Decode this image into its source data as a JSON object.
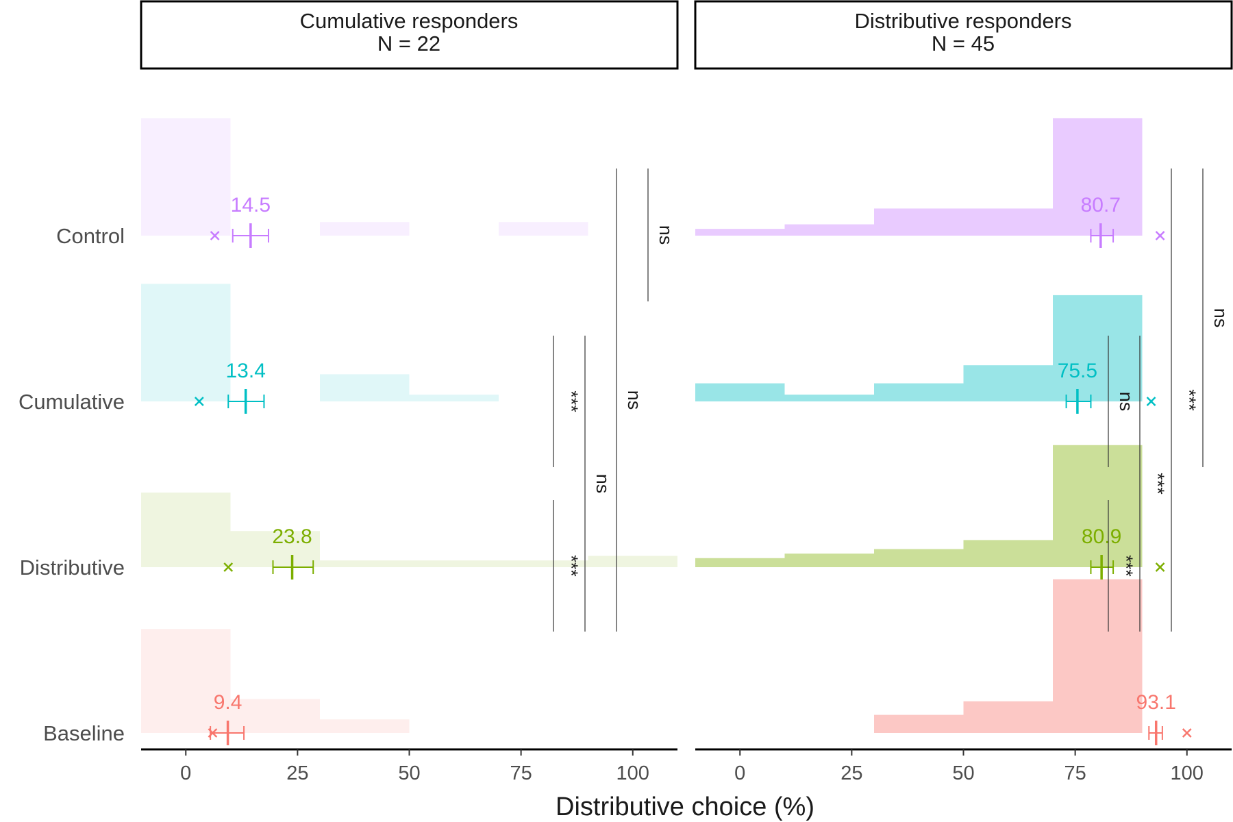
{
  "chart_data": {
    "type": "bar",
    "xlabel": "Distributive choice (%)",
    "ylabel": "",
    "xlim": [
      -10,
      110
    ],
    "x_ticks": [
      "0",
      "25",
      "50",
      "75",
      "100"
    ],
    "x_tick_values": [
      0,
      25,
      50,
      75,
      100
    ],
    "categories": [
      "Control",
      "Cumulative",
      "Distributive",
      "Baseline"
    ],
    "colors": {
      "Control": "#C77CFF",
      "Cumulative": "#00BFC4",
      "Distributive": "#7CAE00",
      "Baseline": "#F8766D"
    },
    "histogram_bins": [
      -10,
      10,
      30,
      50,
      70,
      90,
      110
    ],
    "panels": [
      {
        "title_line1": "Cumulative responders",
        "title_line2": "N = 22",
        "groups": [
          {
            "name": "Control",
            "mean": 14.5,
            "mean_label": "14.5",
            "ci": [
              10.5,
              18.5
            ],
            "median": 6.5,
            "density": [
              0.52,
              0,
              0.06,
              0,
              0.06,
              0
            ]
          },
          {
            "name": "Cumulative",
            "mean": 13.4,
            "mean_label": "13.4",
            "ci": [
              9.5,
              17.5
            ],
            "median": 3.0,
            "density": [
              0.52,
              0,
              0.12,
              0.03,
              0,
              0
            ]
          },
          {
            "name": "Distributive",
            "mean": 23.8,
            "mean_label": "23.8",
            "ci": [
              19.5,
              28.5
            ],
            "median": 9.5,
            "density": [
              0.33,
              0.16,
              0.03,
              0.03,
              0.03,
              0.05
            ]
          },
          {
            "name": "Baseline",
            "mean": 9.4,
            "mean_label": "9.4",
            "ci": [
              5.5,
              13.0
            ],
            "median": 6.0,
            "density": [
              0.46,
              0.15,
              0.06,
              0,
              0,
              0
            ]
          }
        ],
        "comparisons": [
          {
            "from": "Distributive",
            "to": "Baseline",
            "label": "***",
            "lane": 0
          },
          {
            "from": "Cumulative",
            "to": "Distributive",
            "label": "***",
            "lane": 0
          },
          {
            "from": "Distributive",
            "to": "Baseline",
            "label": "ns",
            "lane": 1,
            "extend": true
          },
          {
            "from": "Control",
            "to": "Baseline",
            "label": "ns",
            "lane": 2,
            "span": "cumulative"
          },
          {
            "from": "Control",
            "to": "Cumulative",
            "label": "ns",
            "lane": 3,
            "span": "control"
          }
        ]
      },
      {
        "title_line1": "Distributive responders",
        "title_line2": "N = 45",
        "groups": [
          {
            "name": "Control",
            "mean": 80.7,
            "mean_label": "80.7",
            "ci": [
              78.5,
              83.5
            ],
            "median": 94.0,
            "density": [
              0.03,
              0.05,
              0.12,
              0.12,
              0.52,
              0
            ]
          },
          {
            "name": "Cumulative",
            "mean": 75.5,
            "mean_label": "75.5",
            "ci": [
              73.0,
              78.5
            ],
            "median": 92.0,
            "density": [
              0.08,
              0.03,
              0.08,
              0.16,
              0.47,
              0
            ]
          },
          {
            "name": "Distributive",
            "mean": 80.9,
            "mean_label": "80.9",
            "ci": [
              78.5,
              83.5
            ],
            "median": 94.0,
            "density": [
              0.04,
              0.06,
              0.08,
              0.12,
              0.54,
              0
            ]
          },
          {
            "name": "Baseline",
            "mean": 93.1,
            "mean_label": "93.1",
            "ci": [
              91.5,
              94.5
            ],
            "median": 100.0,
            "density": [
              0,
              0,
              0.08,
              0.14,
              0.68,
              0
            ]
          }
        ],
        "comparisons": [
          {
            "from": "Distributive",
            "to": "Baseline",
            "label": "***",
            "lane": 0
          },
          {
            "from": "Cumulative",
            "to": "Distributive",
            "label": "ns",
            "lane": 0
          },
          {
            "from": "Cumulative",
            "to": "Baseline",
            "label": "***",
            "lane": 1
          },
          {
            "from": "Control",
            "to": "Baseline",
            "label": "***",
            "lane": 2
          },
          {
            "from": "Control",
            "to": "Cumulative",
            "label": "ns",
            "lane": 3,
            "span": "long"
          }
        ]
      }
    ]
  }
}
